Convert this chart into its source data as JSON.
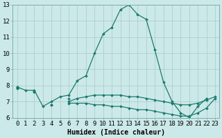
{
  "xlabel": "Humidex (Indice chaleur)",
  "background_color": "#cce9e9",
  "grid_color": "#b0cccc",
  "line_color": "#1a7a6e",
  "xlim": [
    -0.5,
    23.5
  ],
  "ylim": [
    6,
    13
  ],
  "yticks": [
    6,
    7,
    8,
    9,
    10,
    11,
    12,
    13
  ],
  "xticks": [
    0,
    1,
    2,
    3,
    4,
    5,
    6,
    7,
    8,
    9,
    10,
    11,
    12,
    13,
    14,
    15,
    16,
    17,
    18,
    19,
    20,
    21,
    22,
    23
  ],
  "series": [
    [
      7.9,
      7.7,
      7.7,
      6.7,
      7.0,
      7.3,
      7.4,
      8.3,
      8.6,
      10.0,
      11.2,
      11.6,
      12.7,
      13.0,
      12.4,
      12.1,
      10.2,
      8.2,
      7.0,
      6.3,
      6.0,
      6.7,
      7.2,
      null
    ],
    [
      7.9,
      null,
      7.6,
      null,
      6.8,
      null,
      7.2,
      null,
      null,
      null,
      null,
      null,
      null,
      null,
      null,
      null,
      null,
      null,
      null,
      null,
      null,
      null,
      null,
      null
    ],
    [
      7.8,
      null,
      7.6,
      null,
      6.8,
      null,
      7.0,
      7.2,
      7.3,
      7.4,
      7.4,
      7.4,
      7.4,
      7.3,
      7.3,
      7.2,
      7.1,
      7.0,
      6.9,
      6.8,
      6.8,
      6.9,
      7.1,
      7.3
    ],
    [
      7.8,
      null,
      7.6,
      null,
      6.8,
      null,
      6.9,
      6.9,
      6.9,
      6.8,
      6.8,
      6.7,
      6.7,
      6.6,
      6.5,
      6.5,
      6.4,
      6.3,
      6.2,
      6.1,
      6.1,
      6.3,
      6.6,
      7.2
    ]
  ],
  "xlabel_fontsize": 7,
  "tick_fontsize": 6.5,
  "linewidth": 0.9,
  "markersize": 2.0
}
